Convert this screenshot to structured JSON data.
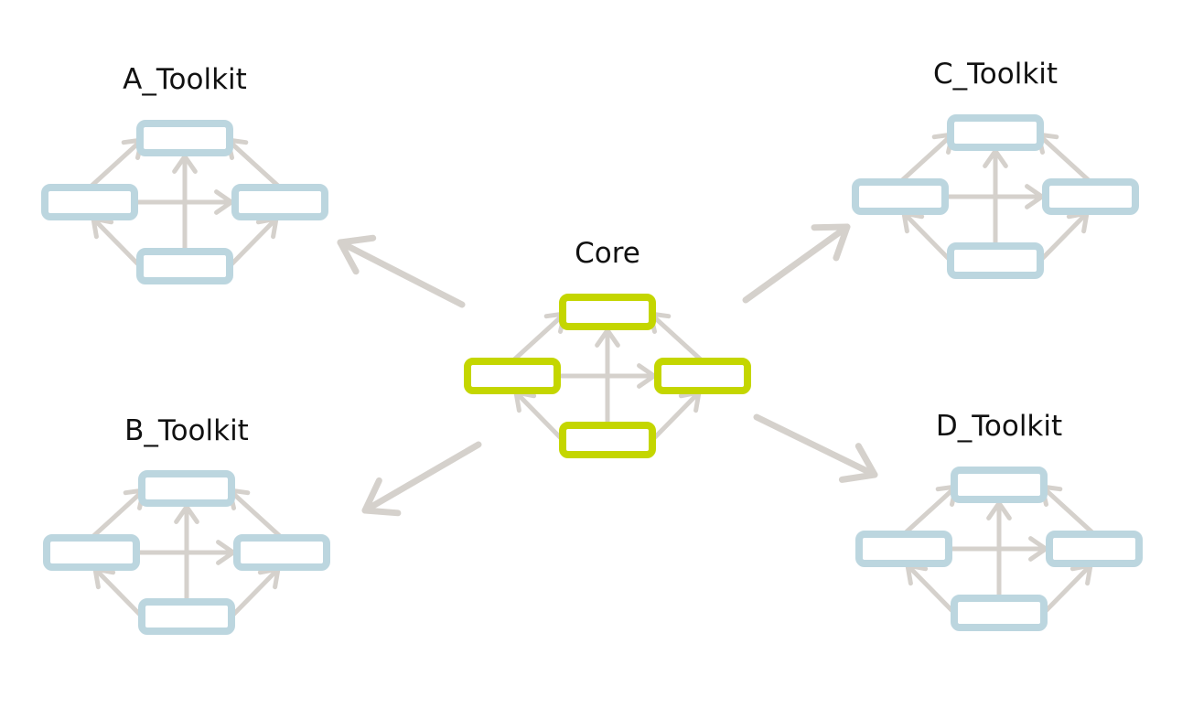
{
  "colors": {
    "background": "#ffffff",
    "core_box": "#c4d600",
    "toolkit_box": "#bcd6df",
    "arrow": "#d5d1cc",
    "title_text": "#111111"
  },
  "modules": {
    "core": {
      "title": "Core"
    },
    "a_toolkit": {
      "title": "A_Toolkit"
    },
    "b_toolkit": {
      "title": "B_Toolkit"
    },
    "c_toolkit": {
      "title": "C_Toolkit"
    },
    "d_toolkit": {
      "title": "D_Toolkit"
    }
  },
  "dependencies": [
    {
      "from": "core",
      "to": "a_toolkit"
    },
    {
      "from": "core",
      "to": "b_toolkit"
    },
    {
      "from": "core",
      "to": "c_toolkit"
    },
    {
      "from": "core",
      "to": "d_toolkit"
    }
  ]
}
